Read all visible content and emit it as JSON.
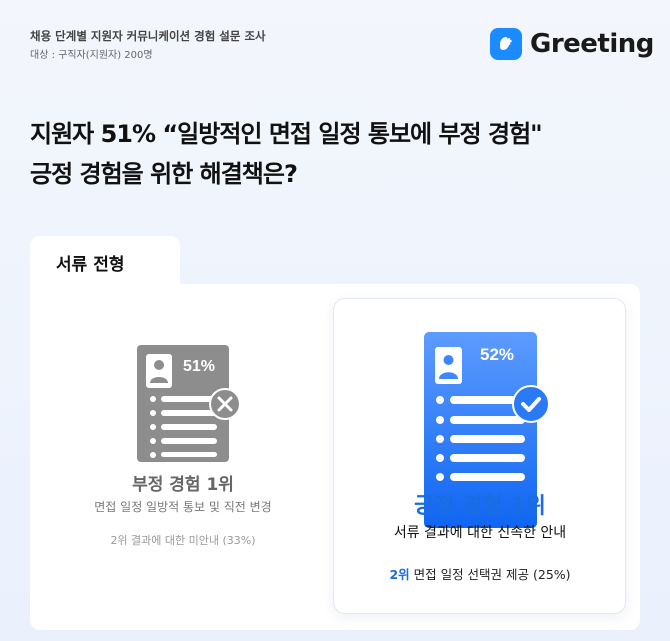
{
  "header": {
    "survey_title": "채용 단계별 지원자 커뮤니케이션 경험 설문 조사",
    "target": "대상 : 구직자(지원자) 200명",
    "brand": "Greeting",
    "brand_color": "#1a8cff"
  },
  "headline": {
    "line1": "지원자 51% “일방적인 면접 일정 통보에 부정 경험\"",
    "line2": "긍정 경험을 위한 해결책은?"
  },
  "tab": {
    "label": "서류 전형"
  },
  "negative": {
    "percent": "51%",
    "title": "부정 경험 1위",
    "desc": "면접 일정 일방적 통보 및 직전 변경",
    "second": "2위 결과에 대한 미안내 (33%)",
    "icon": "x-icon"
  },
  "positive": {
    "percent": "52%",
    "title": "긍정 경험 1위",
    "desc": "서류 결과에 대한 신속한 안내",
    "second_rank": "2위",
    "second_text": " 면접 일정 선택권 제공 (25%)",
    "icon": "check-icon",
    "accent": "#1a6de0"
  }
}
